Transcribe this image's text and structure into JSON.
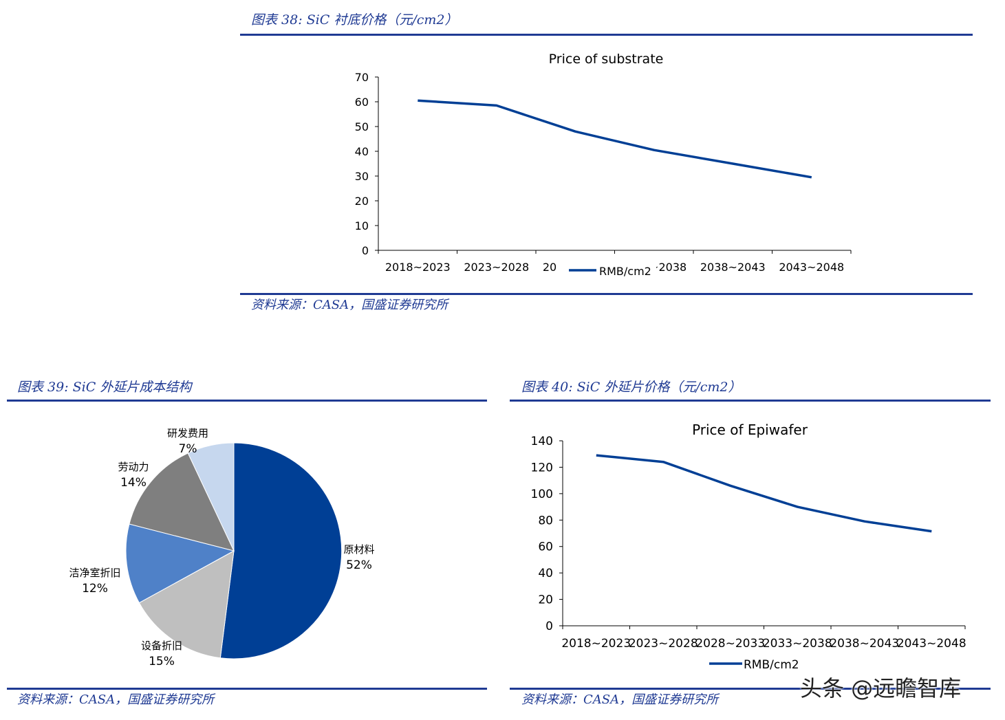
{
  "figure38": {
    "caption": "图表 38:  SiC 衬底价格（元/cm2）",
    "source": "资料来源：CASA，国盛证券研究所"
  },
  "figure39": {
    "caption": "图表 39:  SiC 外延片成本结构",
    "source": "资料来源：CASA，国盛证券研究所"
  },
  "figure40": {
    "caption": "图表 40:  SiC 外延片价格（元/cm2）",
    "source": "资料来源：CASA，国盛证券研究所"
  },
  "watermark": "头条 @远瞻智库",
  "colors": {
    "navy": "#003f95",
    "rule": "#1f3a93",
    "pie": [
      "#003f95",
      "#bfbfbf",
      "#4f81c8",
      "#7f7f7f",
      "#c6d7ee"
    ]
  },
  "chart_data": [
    {
      "id": "substrate",
      "type": "line",
      "title": "Price of substrate",
      "categories": [
        "2018~2023",
        "2023~2028",
        "2028~2033",
        "2033~2038",
        "2038~2043",
        "2043~2048"
      ],
      "series": [
        {
          "name": "RMB/cm2",
          "values": [
            60.5,
            58.5,
            48,
            40.5,
            35,
            29.5
          ]
        }
      ],
      "ylim": [
        0,
        70
      ],
      "yticks": [
        0,
        10,
        20,
        30,
        40,
        50,
        60,
        70
      ],
      "legend": "bottom-center",
      "grid": false
    },
    {
      "id": "cost",
      "type": "pie",
      "slices": [
        {
          "label": "原材料",
          "value": 52,
          "text": "52%"
        },
        {
          "label": "设备折旧",
          "value": 15,
          "text": "15%"
        },
        {
          "label": "洁净室折旧",
          "value": 12,
          "text": "12%"
        },
        {
          "label": "劳动力",
          "value": 14,
          "text": "14%"
        },
        {
          "label": "研发费用",
          "value": 7,
          "text": "7%"
        }
      ]
    },
    {
      "id": "epiwafer",
      "type": "line",
      "title": "Price of Epiwafer",
      "categories": [
        "2018~2023",
        "2023~2028",
        "2028~2033",
        "2033~2038",
        "2038~2043",
        "2043~2048"
      ],
      "series": [
        {
          "name": "RMB/cm2",
          "values": [
            129,
            124,
            106,
            90,
            79,
            71.5
          ]
        }
      ],
      "ylim": [
        0,
        140
      ],
      "yticks": [
        0,
        20,
        40,
        60,
        80,
        100,
        120,
        140
      ],
      "legend": "bottom-center",
      "grid": false
    }
  ]
}
